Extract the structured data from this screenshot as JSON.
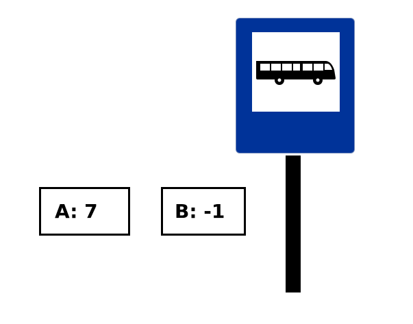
{
  "colors": {
    "sign_blue": "#003399",
    "sign_white": "#ffffff",
    "pole": "#000000",
    "bus": "#000000"
  },
  "sign": {
    "icon": "bus-icon"
  },
  "labels": {
    "a": "A: 7",
    "b": "B: -1"
  }
}
